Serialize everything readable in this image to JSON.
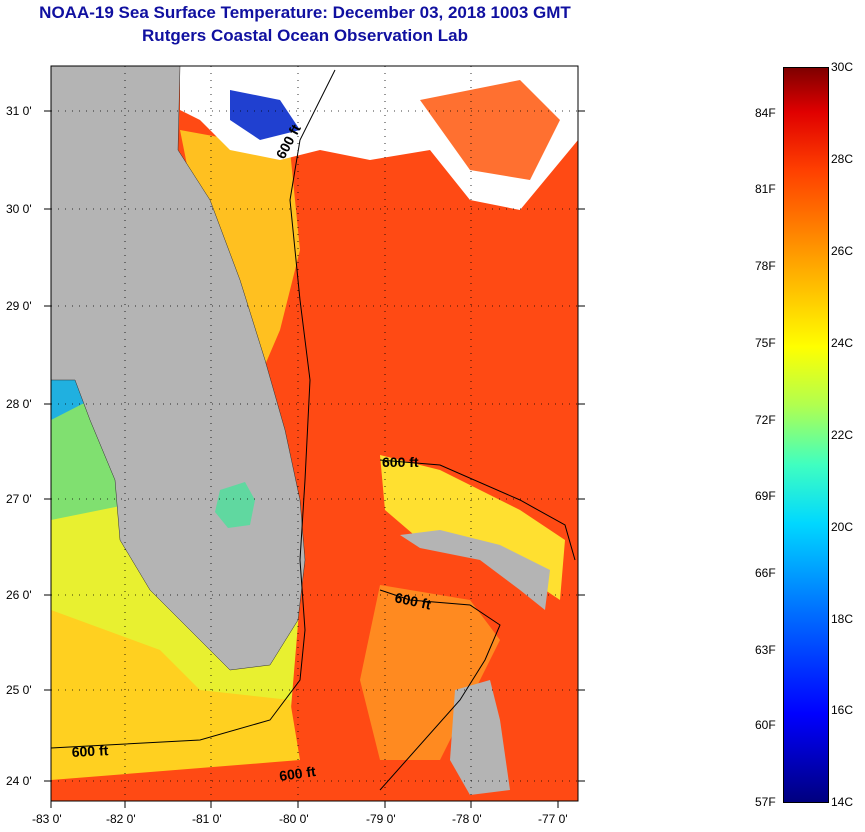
{
  "title": {
    "line1": "NOAA-19 Sea Surface Temperature:  December 03, 2018 1003 GMT",
    "line2": "Rutgers Coastal Ocean Observation Lab"
  },
  "map": {
    "lat_labels": [
      "31 0'",
      "30 0'",
      "29 0'",
      "28 0'",
      "27 0'",
      "26 0'",
      "25 0'",
      "24 0'"
    ],
    "lon_labels": [
      "-83 0'",
      "-82 0'",
      "-81 0'",
      "-80 0'",
      "-79 0'",
      "-78 0'",
      "-77 0'"
    ],
    "contour_labels": [
      "600 ft",
      "600 ft",
      "600 ft",
      "600 ft",
      "600 ft"
    ]
  },
  "colorbar": {
    "fahrenheit": [
      "84F",
      "81F",
      "78F",
      "75F",
      "72F",
      "69F",
      "66F",
      "63F",
      "60F",
      "57F"
    ],
    "celsius": [
      "30C",
      "28C",
      "26C",
      "24C",
      "22C",
      "20C",
      "18C",
      "16C",
      "14C"
    ],
    "colors": {
      "land": "#b4b4b4",
      "cloud": "#ffffff",
      "warm": "#ff4a10",
      "cool": "#e8ff30"
    }
  }
}
